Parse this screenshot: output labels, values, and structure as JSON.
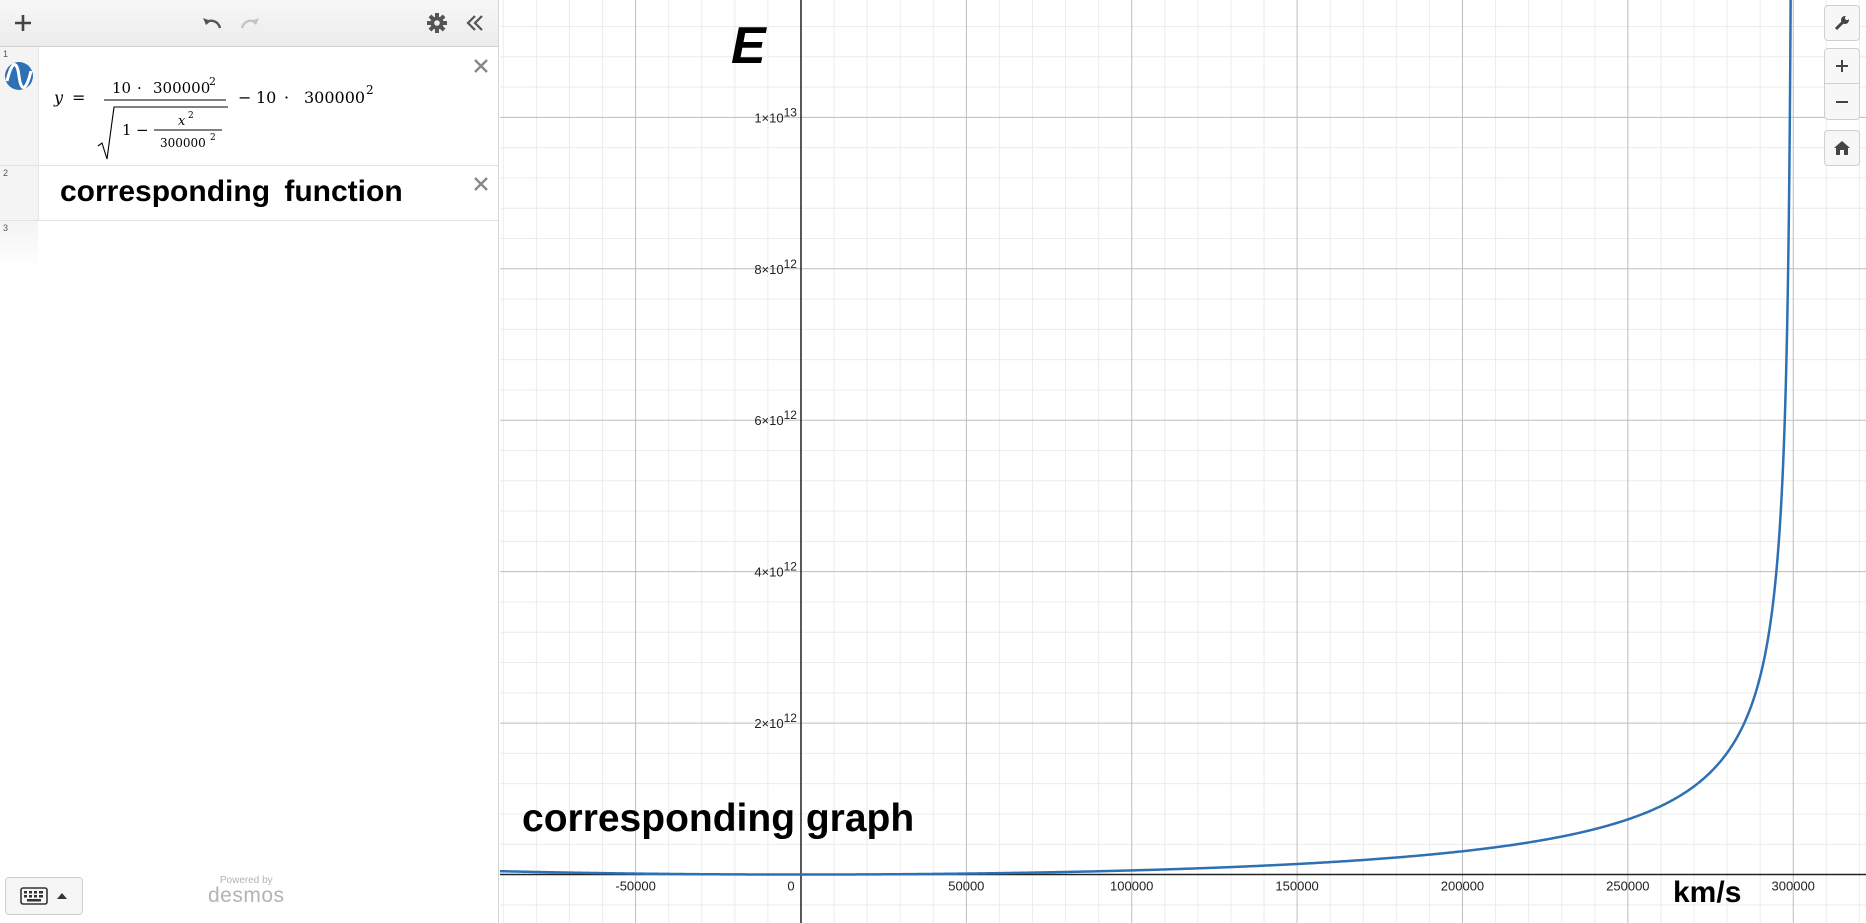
{
  "toolbar": {
    "add_icon": "plus-icon",
    "undo_icon": "undo-icon",
    "redo_icon": "redo-icon",
    "settings_icon": "gear-icon",
    "collapse_icon": "double-chevron-left-icon"
  },
  "expressions": [
    {
      "num": "1",
      "lhs": "y",
      "eq": "=",
      "num_coeff": "10",
      "dot": "·",
      "num_base": "300000",
      "exp": "2",
      "sqrt_one": "1",
      "minus": "−",
      "inner_var": "x",
      "inner_exp": "2",
      "inner_den": "300000",
      "inner_den_exp": "2",
      "tail_coeff": "10",
      "tail_base": "300000",
      "tail_exp": "2",
      "color": "#2d70b3"
    },
    {
      "num": "2",
      "note": "corresponding  function"
    },
    {
      "num": "3"
    }
  ],
  "footer": {
    "powered": "Powered by",
    "brand": "desmos"
  },
  "graph": {
    "title_label": "E",
    "note_label": "corresponding graph",
    "unit_label": "km/s",
    "curve_color": "#2d70b3",
    "x_ticks": [
      {
        "v": -50000,
        "label": "-50000"
      },
      {
        "v": 0,
        "label": "0"
      },
      {
        "v": 50000,
        "label": "50000"
      },
      {
        "v": 100000,
        "label": "100000"
      },
      {
        "v": 150000,
        "label": "150000"
      },
      {
        "v": 200000,
        "label": "200000"
      },
      {
        "v": 250000,
        "label": "250000"
      },
      {
        "v": 300000,
        "label": "300000"
      }
    ],
    "y_ticks": [
      {
        "v": 2000000000000.0,
        "mant": "2",
        "exp": "12"
      },
      {
        "v": 4000000000000.0,
        "mant": "4",
        "exp": "12"
      },
      {
        "v": 6000000000000.0,
        "mant": "6",
        "exp": "12"
      },
      {
        "v": 8000000000000.0,
        "mant": "8",
        "exp": "12"
      },
      {
        "v": 10000000000000.0,
        "mant": "1",
        "exp": "13"
      }
    ],
    "xlim": [
      -91000,
      322000
    ],
    "ylim": [
      -640000000000.0,
      11550000000000.0
    ]
  },
  "controls": {
    "wrench_icon": "wrench-icon",
    "zoom_in_icon": "plus-icon",
    "zoom_out_icon": "minus-icon",
    "home_icon": "home-icon"
  }
}
